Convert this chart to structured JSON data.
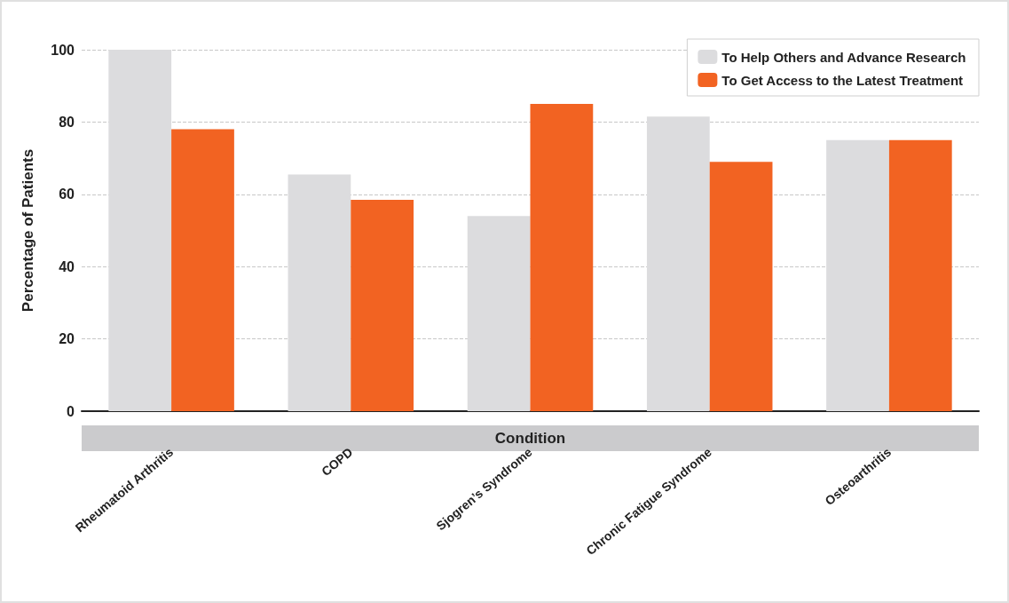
{
  "chart_data": {
    "type": "bar",
    "xlabel": "Condition",
    "ylabel": "Percentage of Patients",
    "categories": [
      "Rheumatoid Arthritis",
      "COPD",
      "Sjogren’s Syndrome",
      "Chronic Fatigue Syndrome",
      "Osteoarthritis"
    ],
    "series": [
      {
        "name": "To Help Others and Advance Research",
        "color": "#dcdcde",
        "values": [
          100,
          65.5,
          54,
          81.5,
          75
        ]
      },
      {
        "name": "To Get Access to the Latest Treatment",
        "color": "#f26322",
        "values": [
          78,
          58.5,
          85,
          69,
          75
        ]
      }
    ],
    "ylim": [
      0,
      100
    ],
    "yticks": [
      0,
      20,
      40,
      60,
      80,
      100
    ],
    "grid": "y",
    "legend": "top right"
  }
}
